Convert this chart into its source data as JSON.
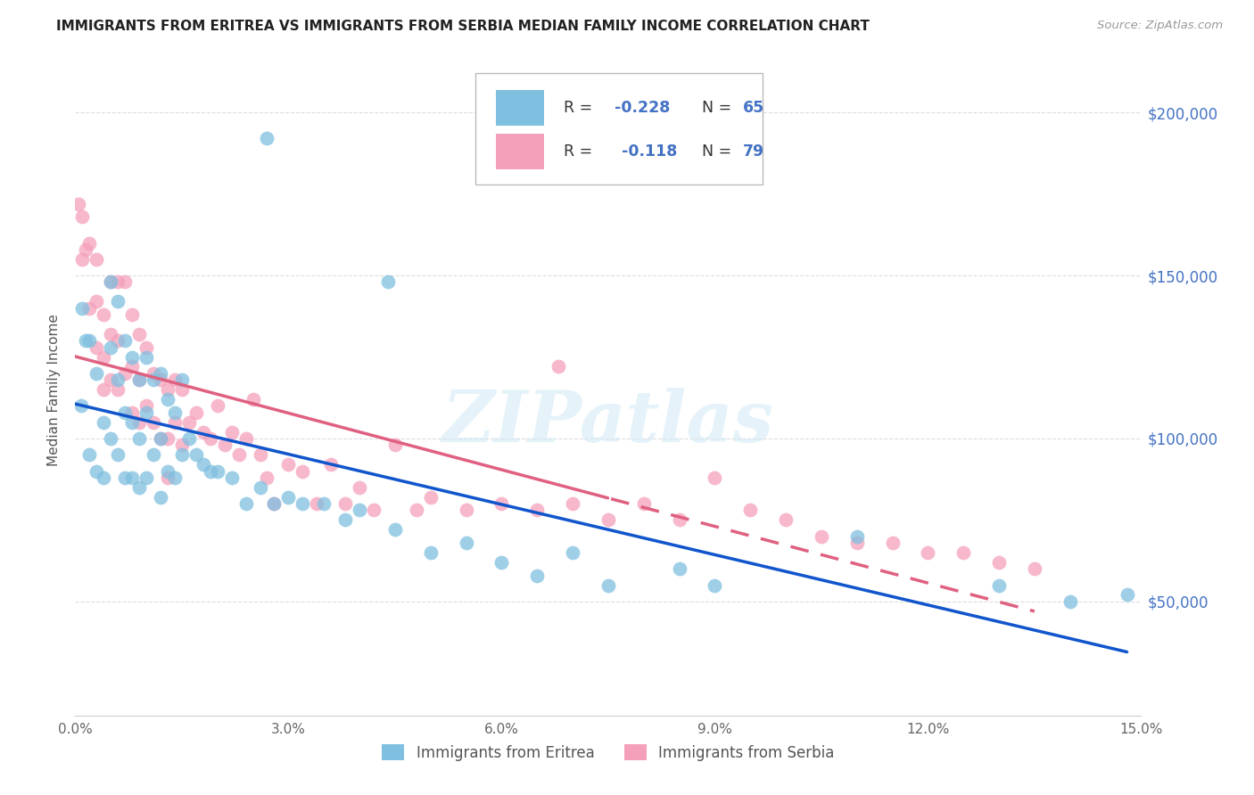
{
  "title": "IMMIGRANTS FROM ERITREA VS IMMIGRANTS FROM SERBIA MEDIAN FAMILY INCOME CORRELATION CHART",
  "source": "Source: ZipAtlas.com",
  "ylabel": "Median Family Income",
  "yticks": [
    50000,
    100000,
    150000,
    200000
  ],
  "ytick_labels": [
    "$50,000",
    "$100,000",
    "$150,000",
    "$200,000"
  ],
  "xlim": [
    0.0,
    0.15
  ],
  "ylim": [
    15000,
    215000
  ],
  "eritrea_color": "#7fbfdf",
  "serbia_color": "#f5a0bb",
  "eritrea_line_color": "#1155cc",
  "serbia_line_color": "#e06080",
  "watermark": "ZIPatlas",
  "eritrea_x": [
    0.0008,
    0.001,
    0.0015,
    0.002,
    0.002,
    0.003,
    0.003,
    0.004,
    0.004,
    0.005,
    0.005,
    0.005,
    0.006,
    0.006,
    0.006,
    0.007,
    0.007,
    0.007,
    0.008,
    0.008,
    0.008,
    0.009,
    0.009,
    0.009,
    0.01,
    0.01,
    0.01,
    0.011,
    0.011,
    0.012,
    0.012,
    0.012,
    0.013,
    0.013,
    0.014,
    0.014,
    0.015,
    0.015,
    0.016,
    0.017,
    0.018,
    0.019,
    0.02,
    0.022,
    0.024,
    0.026,
    0.028,
    0.03,
    0.032,
    0.035,
    0.038,
    0.04,
    0.045,
    0.05,
    0.055,
    0.06,
    0.065,
    0.07,
    0.075,
    0.085,
    0.09,
    0.11,
    0.13,
    0.14,
    0.148
  ],
  "eritrea_y": [
    110000,
    140000,
    130000,
    130000,
    95000,
    120000,
    90000,
    105000,
    88000,
    148000,
    128000,
    100000,
    142000,
    118000,
    95000,
    130000,
    108000,
    88000,
    125000,
    105000,
    88000,
    118000,
    100000,
    85000,
    125000,
    108000,
    88000,
    118000,
    95000,
    120000,
    100000,
    82000,
    112000,
    90000,
    108000,
    88000,
    118000,
    95000,
    100000,
    95000,
    92000,
    90000,
    90000,
    88000,
    80000,
    85000,
    80000,
    82000,
    80000,
    80000,
    75000,
    78000,
    72000,
    65000,
    68000,
    62000,
    58000,
    65000,
    55000,
    60000,
    55000,
    70000,
    55000,
    50000,
    52000
  ],
  "eritrea_outlier_x": [
    0.027
  ],
  "eritrea_outlier_y": [
    192000
  ],
  "eritrea_outlier2_x": [
    0.044
  ],
  "eritrea_outlier2_y": [
    148000
  ],
  "serbia_x": [
    0.0005,
    0.001,
    0.001,
    0.0015,
    0.002,
    0.002,
    0.003,
    0.003,
    0.003,
    0.004,
    0.004,
    0.004,
    0.005,
    0.005,
    0.005,
    0.006,
    0.006,
    0.006,
    0.007,
    0.007,
    0.008,
    0.008,
    0.008,
    0.009,
    0.009,
    0.009,
    0.01,
    0.01,
    0.011,
    0.011,
    0.012,
    0.012,
    0.013,
    0.013,
    0.013,
    0.014,
    0.014,
    0.015,
    0.015,
    0.016,
    0.017,
    0.018,
    0.019,
    0.02,
    0.021,
    0.022,
    0.023,
    0.024,
    0.025,
    0.026,
    0.027,
    0.028,
    0.03,
    0.032,
    0.034,
    0.036,
    0.038,
    0.04,
    0.042,
    0.045,
    0.048,
    0.05,
    0.055,
    0.06,
    0.065,
    0.07,
    0.075,
    0.08,
    0.085,
    0.09,
    0.095,
    0.1,
    0.105,
    0.11,
    0.115,
    0.12,
    0.125,
    0.13,
    0.135
  ],
  "serbia_y": [
    172000,
    168000,
    155000,
    158000,
    160000,
    140000,
    155000,
    142000,
    128000,
    138000,
    125000,
    115000,
    148000,
    132000,
    118000,
    148000,
    130000,
    115000,
    148000,
    120000,
    138000,
    122000,
    108000,
    132000,
    118000,
    105000,
    128000,
    110000,
    120000,
    105000,
    118000,
    100000,
    115000,
    100000,
    88000,
    118000,
    105000,
    115000,
    98000,
    105000,
    108000,
    102000,
    100000,
    110000,
    98000,
    102000,
    95000,
    100000,
    112000,
    95000,
    88000,
    80000,
    92000,
    90000,
    80000,
    92000,
    80000,
    85000,
    78000,
    98000,
    78000,
    82000,
    78000,
    80000,
    78000,
    80000,
    75000,
    80000,
    75000,
    88000,
    78000,
    75000,
    70000,
    68000,
    68000,
    65000,
    65000,
    62000,
    60000
  ],
  "serbia_outlier_x": [
    0.068
  ],
  "serbia_outlier_y": [
    122000
  ],
  "background_color": "#ffffff",
  "grid_color": "#dddddd"
}
